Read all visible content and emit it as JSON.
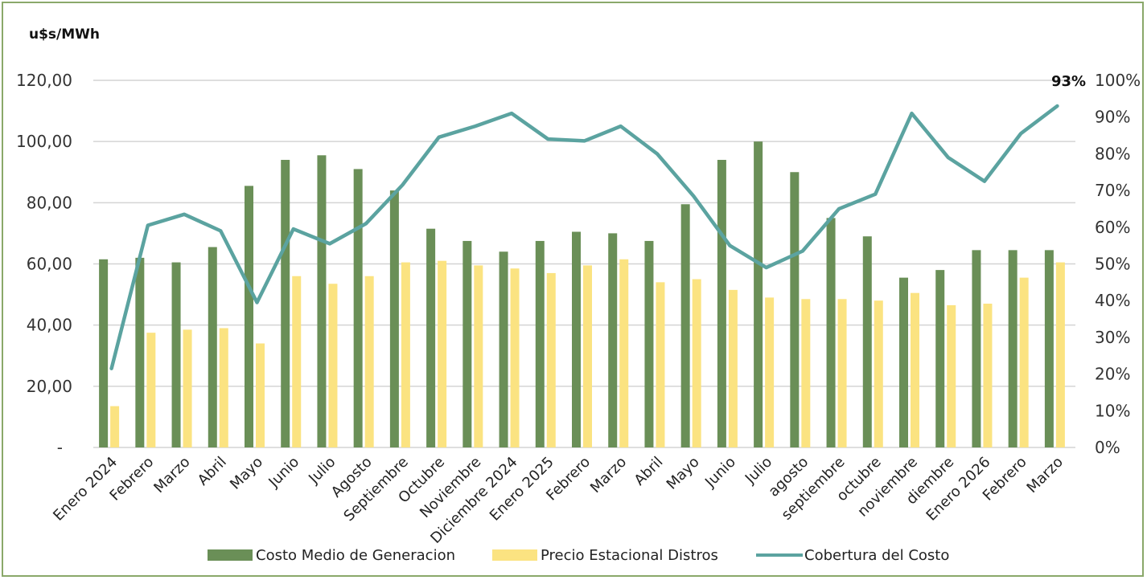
{
  "chart_data": {
    "type": "bar",
    "ylabel": "u$s/MWh",
    "ylim": [
      0,
      120
    ],
    "y_ticks": [
      "-",
      "20,00",
      "40,00",
      "60,00",
      "80,00",
      "100,00",
      "120,00"
    ],
    "y2lim": [
      0,
      100
    ],
    "y2_ticks": [
      "0%",
      "10%",
      "20%",
      "30%",
      "40%",
      "50%",
      "60%",
      "70%",
      "80%",
      "90%",
      "100%"
    ],
    "grid": true,
    "legend_position": "bottom",
    "categories": [
      "Enero 2024",
      "Febrero",
      "Marzo",
      "Abril",
      "Mayo",
      "Junio",
      "Julio",
      "Agosto",
      "Septiembre",
      "Octubre",
      "Noviembre",
      "Diciembre 2024",
      "Enero 2025",
      "Febrero",
      "Marzo",
      "Abril",
      "Mayo",
      "Junio",
      "Julio",
      "agosto",
      "septiembre",
      "octubre",
      "noviembre",
      "diembre",
      "Enero 2026",
      "Febrero",
      "Marzo"
    ],
    "series": [
      {
        "name": "Costo Medio de Generacion",
        "type": "bar",
        "axis": "left",
        "color": "#6a8f57",
        "values": [
          61.5,
          62,
          60.5,
          65.5,
          85.5,
          94,
          95.5,
          91,
          84,
          71.5,
          67.5,
          64,
          67.5,
          70.5,
          70,
          67.5,
          79.5,
          94,
          100,
          90,
          75,
          69,
          55.5,
          58,
          64.5,
          64.5,
          64.5
        ]
      },
      {
        "name": "Precio Estacional Distros",
        "type": "bar",
        "axis": "left",
        "color": "#fbe381",
        "values": [
          13.5,
          37.5,
          38.5,
          39,
          34,
          56,
          53.5,
          56,
          60.5,
          61,
          59.5,
          58.5,
          57,
          59.5,
          61.5,
          54,
          55,
          51.5,
          49,
          48.5,
          48.5,
          48,
          50.5,
          46.5,
          47,
          55.5,
          60.5
        ]
      },
      {
        "name": "Cobertura del Costo",
        "type": "line",
        "axis": "right",
        "color": "#5ba3a0",
        "values": [
          21.5,
          60.5,
          63.5,
          59,
          39.5,
          59.5,
          55.5,
          61,
          71.5,
          84.5,
          87.5,
          91,
          84,
          83.5,
          87.5,
          80,
          68.5,
          55,
          49,
          53.5,
          65,
          69,
          91,
          79,
          72.5,
          85.5,
          93
        ]
      }
    ],
    "annotations": [
      {
        "text": "93%"
      }
    ]
  }
}
